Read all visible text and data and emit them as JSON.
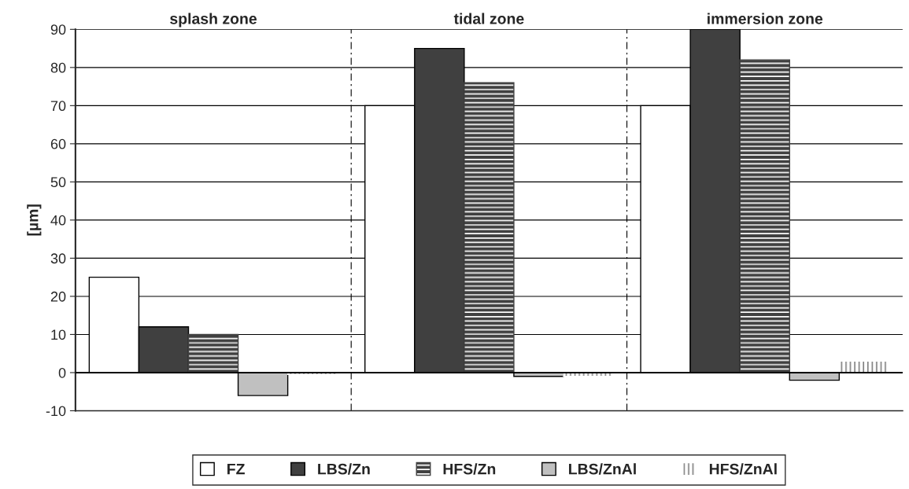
{
  "chart_data": {
    "type": "bar",
    "categories": [
      "splash zone",
      "tidal zone",
      "immersion zone"
    ],
    "ylabel": "[µm]",
    "ylim": [
      -10,
      90
    ],
    "yticks": [
      -10,
      0,
      10,
      20,
      30,
      40,
      50,
      60,
      70,
      80,
      90
    ],
    "grid": "y",
    "legend": "bottom",
    "series": [
      {
        "name": "FZ",
        "color": "#ffffff",
        "values": [
          25,
          70,
          70
        ]
      },
      {
        "name": "LBS/Zn",
        "color": "#404040",
        "values": [
          12,
          85,
          90
        ]
      },
      {
        "name": "HFS/Zn",
        "color": "#404040",
        "values": [
          10,
          76,
          82
        ]
      },
      {
        "name": "LBS/ZnAl",
        "color": "#c0c0c0",
        "values": [
          -6,
          -1,
          -2
        ]
      },
      {
        "name": "HFS/ZnAl",
        "color": "#ffffff",
        "values": [
          -0.5,
          -1,
          3
        ]
      }
    ]
  }
}
